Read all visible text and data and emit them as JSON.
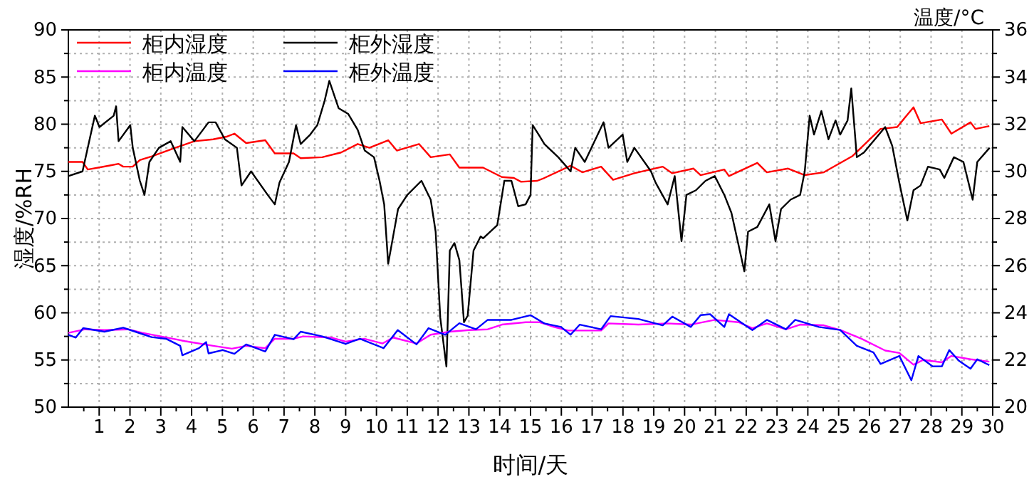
{
  "chart_data": {
    "type": "line",
    "xlabel": "时间/天",
    "ylabel": "湿度/%RH",
    "y2label": "温度/°C",
    "xlim": [
      0,
      30
    ],
    "xticks": [
      1,
      2,
      3,
      4,
      5,
      6,
      7,
      8,
      9,
      10,
      11,
      12,
      13,
      14,
      15,
      16,
      17,
      18,
      19,
      20,
      21,
      22,
      23,
      24,
      25,
      26,
      27,
      28,
      29,
      30
    ],
    "ylim": [
      50,
      90
    ],
    "yticks": [
      50,
      {
        "value": 52.5,
        "label": null
      },
      55,
      {
        "value": 57.5,
        "label": null
      },
      60,
      {
        "value": 62.5,
        "label": null
      },
      65,
      {
        "value": 67.5,
        "label": null
      },
      70,
      {
        "value": 72.5,
        "label": null
      },
      75,
      {
        "value": 77.5,
        "label": null
      },
      80,
      {
        "value": 82.5,
        "label": null
      },
      85,
      {
        "value": 87.5,
        "label": null
      },
      90
    ],
    "y2lim": [
      20,
      36
    ],
    "y2ticks": [
      20,
      {
        "value": 21,
        "label": null
      },
      22,
      {
        "value": 23,
        "label": null
      },
      24,
      {
        "value": 25,
        "label": null
      },
      26,
      {
        "value": 27,
        "label": null
      },
      28,
      {
        "value": 29,
        "label": null
      },
      30,
      {
        "value": 31,
        "label": null
      },
      32,
      {
        "value": 33,
        "label": null
      },
      34,
      {
        "value": 35,
        "label": null
      },
      36
    ],
    "grid": true,
    "legend": "top left",
    "marker": "none",
    "line_style": "solid",
    "series": [
      {
        "name": "柜内湿度",
        "color": "#ff0000",
        "x": [
          0,
          0.46,
          0.63,
          1.32,
          1.63,
          1.78,
          2.09,
          2.32,
          2.71,
          3.47,
          4.09,
          4.7,
          5.16,
          5.39,
          5.77,
          6.39,
          6.7,
          7.31,
          7.54,
          8.24,
          8.85,
          9.39,
          9.77,
          10.38,
          10.66,
          11.38,
          11.76,
          12.38,
          12.69,
          13.46,
          14.07,
          14.46,
          14.69,
          15.22,
          15.45,
          16.3,
          16.68,
          17.29,
          17.68,
          18.37,
          19.29,
          19.6,
          20.29,
          20.52,
          21.29,
          21.44,
          22.36,
          22.67,
          23.36,
          23.9,
          24.52,
          25.44,
          26.36,
          26.9,
          27.43,
          27.66,
          28.35,
          28.66,
          29.28,
          29.44,
          29.89
        ],
        "values": [
          76,
          76,
          75.2,
          75.6,
          75.8,
          75.5,
          75.5,
          76.2,
          76.6,
          77.5,
          78.2,
          78.4,
          78.7,
          79,
          78,
          78.3,
          76.9,
          76.9,
          76.4,
          76.5,
          77,
          77.9,
          77.5,
          78.3,
          77.2,
          77.9,
          76.5,
          76.8,
          75.4,
          75.4,
          74.4,
          74.3,
          73.9,
          74,
          74.3,
          75.6,
          74.9,
          75.5,
          74.1,
          74.8,
          75.5,
          74.8,
          75.3,
          74.6,
          75.2,
          74.5,
          75.9,
          74.9,
          75.3,
          74.6,
          74.9,
          76.6,
          79.5,
          79.7,
          81.8,
          80.1,
          80.5,
          79,
          80.2,
          79.5,
          79.8
        ]
      },
      {
        "name": "柜外湿度",
        "color": "#000000",
        "x": [
          0,
          0.46,
          0.86,
          1.01,
          1.47,
          1.55,
          1.63,
          2.01,
          2.09,
          2.32,
          2.47,
          2.63,
          2.94,
          3.32,
          3.63,
          3.7,
          4.09,
          4.55,
          4.78,
          5.08,
          5.47,
          5.62,
          5.93,
          6.47,
          6.7,
          6.85,
          7.16,
          7.39,
          7.54,
          7.85,
          8.08,
          8.31,
          8.47,
          8.77,
          9.08,
          9.39,
          9.62,
          9.92,
          10.1,
          10.25,
          10.38,
          10.7,
          11,
          11.46,
          11.76,
          11.92,
          12.07,
          12.27,
          12.38,
          12.53,
          12.69,
          12.84,
          12.96,
          13.15,
          13.38,
          13.46,
          13.92,
          14.15,
          14.38,
          14.6,
          14.84,
          15,
          15.07,
          15.3,
          15.45,
          15.9,
          16.3,
          16.45,
          16.76,
          17.37,
          17.53,
          17.99,
          18.14,
          18.37,
          18.91,
          19.06,
          19.45,
          19.68,
          19.9,
          20.06,
          20.37,
          20.68,
          20.98,
          21.29,
          21.52,
          21.94,
          22.06,
          22.36,
          22.75,
          22.95,
          23.13,
          23.44,
          23.75,
          23.9,
          24.06,
          24.2,
          24.44,
          24.67,
          24.9,
          25.05,
          25.29,
          25.41,
          25.59,
          25.82,
          26.51,
          26.74,
          26.97,
          27.23,
          27.43,
          27.66,
          27.9,
          28.28,
          28.43,
          28.74,
          29.05,
          29.35,
          29.5,
          29.9
        ],
        "values": [
          74.5,
          75,
          80.9,
          79.7,
          80.9,
          81.9,
          78.2,
          79.9,
          77.5,
          74,
          72.5,
          76,
          77.5,
          78.2,
          76,
          79.7,
          78.2,
          80.2,
          80.2,
          78.4,
          77.5,
          73.5,
          75,
          72.5,
          71.5,
          73.8,
          76,
          79.9,
          77.9,
          78.9,
          79.9,
          82.4,
          84.6,
          81.7,
          81.1,
          79.4,
          77.2,
          76.5,
          74,
          71.5,
          65.2,
          71,
          72.5,
          74,
          72,
          68.6,
          59.5,
          54.3,
          66.6,
          67.4,
          65.6,
          59,
          59.7,
          66.6,
          68.1,
          67.9,
          69.3,
          74,
          74,
          71.3,
          71.5,
          72.5,
          79.9,
          78.7,
          77.9,
          76.5,
          75,
          77.5,
          76,
          80.2,
          77.5,
          78.9,
          76,
          77.5,
          75,
          73.8,
          71.5,
          74.5,
          67.6,
          72.5,
          73,
          74,
          74.5,
          72.5,
          70.6,
          64.4,
          68.6,
          69.1,
          71.5,
          67.6,
          71,
          72,
          72.5,
          75,
          80.9,
          78.9,
          81.4,
          78.4,
          80.4,
          78.9,
          80.4,
          83.8,
          76.5,
          77,
          79.7,
          77.7,
          73.8,
          69.8,
          73,
          73.5,
          75.5,
          75.2,
          74.3,
          76.5,
          76,
          72,
          76,
          77.5
        ]
      },
      {
        "name": "柜内温度",
        "color": "#ff00ff",
        "axis": "y2",
        "x": [
          0,
          0.55,
          1.17,
          1.94,
          2.4,
          3,
          3.78,
          4.7,
          5.31,
          5.77,
          6.39,
          6.7,
          7.31,
          7.62,
          8.54,
          9,
          9.6,
          10.2,
          10.54,
          11.3,
          11.76,
          12.38,
          13,
          13.61,
          14.07,
          14.84,
          15.3,
          15.76,
          16.22,
          17.29,
          17.53,
          18.5,
          19.45,
          20.2,
          20.98,
          21.75,
          22.2,
          22.67,
          23.29,
          23.75,
          24.52,
          25.05,
          25.74,
          26.51,
          26.97,
          27.43,
          27.74,
          28.35,
          28.66,
          29.28,
          29.89
        ],
        "values": [
          23.15,
          23.3,
          23.27,
          23.3,
          23.15,
          23,
          22.8,
          22.6,
          22.48,
          22.6,
          22.5,
          22.9,
          22.9,
          23,
          22.95,
          22.78,
          22.9,
          22.7,
          22.95,
          22.7,
          23.07,
          23.2,
          23.27,
          23.3,
          23.5,
          23.6,
          23.6,
          23.4,
          23.25,
          23.25,
          23.55,
          23.5,
          23.55,
          23.5,
          23.7,
          23.6,
          23.35,
          23.55,
          23.3,
          23.5,
          23.47,
          23.27,
          22.9,
          22.4,
          22.3,
          21.8,
          22,
          21.9,
          22.17,
          22.03,
          21.93
        ]
      },
      {
        "name": "柜外温度",
        "color": "#0000ff",
        "axis": "y2",
        "x": [
          0,
          0.24,
          0.48,
          1.17,
          1.78,
          2.17,
          2.7,
          3.17,
          3.63,
          3.7,
          4.24,
          4.47,
          4.55,
          5.01,
          5.39,
          5.77,
          6.39,
          6.7,
          7.31,
          7.54,
          8.24,
          9,
          9.46,
          10.23,
          10.69,
          11.3,
          11.69,
          12.23,
          12.69,
          13.23,
          13.61,
          14.38,
          15,
          15.45,
          15.99,
          16.3,
          16.6,
          17.29,
          17.6,
          18.5,
          19.29,
          19.6,
          20.2,
          20.52,
          20.83,
          21.29,
          21.44,
          22.2,
          22.67,
          23.29,
          23.59,
          24.36,
          25.05,
          25.59,
          26.13,
          26.36,
          26.97,
          27.36,
          27.59,
          28.05,
          28.35,
          28.59,
          28.9,
          29.28,
          29.5,
          29.89
        ],
        "values": [
          23.07,
          22.95,
          23.35,
          23.2,
          23.37,
          23.2,
          22.97,
          22.9,
          22.6,
          22.2,
          22.5,
          22.76,
          22.28,
          22.42,
          22.26,
          22.66,
          22.36,
          23.07,
          22.88,
          23.2,
          23,
          22.68,
          22.9,
          22.5,
          23.27,
          22.66,
          23.35,
          23.07,
          23.56,
          23.3,
          23.7,
          23.7,
          23.9,
          23.55,
          23.4,
          23.07,
          23.5,
          23.3,
          23.86,
          23.74,
          23.47,
          23.84,
          23.4,
          23.9,
          23.94,
          23.4,
          23.94,
          23.27,
          23.7,
          23.3,
          23.7,
          23.4,
          23.27,
          22.6,
          22.32,
          21.83,
          22.17,
          21.14,
          22.17,
          21.73,
          21.73,
          22.42,
          21.97,
          21.63,
          22.03,
          21.78
        ]
      }
    ]
  }
}
